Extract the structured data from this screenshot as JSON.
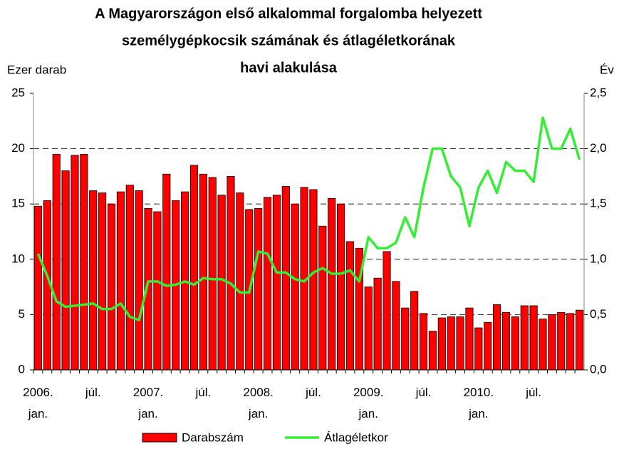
{
  "chart_data": {
    "type": "bar_line",
    "title": [
      "A Magyarországon első alkalommal forgalomba helyezett",
      "személygépkocsik számának és átlagéletkorának",
      "havi alakulása"
    ],
    "ylabel": "Ezer darab",
    "y2label": "Év",
    "categories": [
      "2006. jan.",
      null,
      null,
      null,
      null,
      null,
      "júl.",
      null,
      null,
      null,
      null,
      null,
      "2007. jan.",
      null,
      null,
      null,
      null,
      null,
      "júl.",
      null,
      null,
      null,
      null,
      null,
      "2008. jan.",
      null,
      null,
      null,
      null,
      null,
      "júl.",
      null,
      null,
      null,
      null,
      null,
      "2009. jan.",
      null,
      null,
      null,
      null,
      null,
      "júl.",
      null,
      null,
      null,
      null,
      null,
      "2010. jan.",
      null,
      null,
      null,
      null,
      null,
      "júl.",
      null,
      null,
      null,
      null,
      null
    ],
    "series": [
      {
        "name": "Darabszám",
        "color": "#ff0000",
        "axis": "y",
        "kind": "bar",
        "values": [
          14.8,
          15.3,
          19.5,
          18.0,
          19.4,
          19.5,
          16.2,
          16.0,
          15.0,
          16.1,
          16.7,
          16.2,
          14.6,
          14.3,
          17.7,
          15.3,
          16.1,
          18.5,
          17.7,
          17.4,
          15.8,
          17.5,
          16.0,
          14.5,
          14.6,
          15.6,
          15.8,
          16.6,
          15.0,
          16.5,
          16.3,
          13.0,
          15.5,
          15.0,
          11.6,
          11.0,
          7.5,
          8.3,
          10.7,
          8.0,
          5.6,
          7.1,
          5.1,
          3.5,
          4.7,
          4.8,
          4.8,
          5.6,
          3.8,
          4.3,
          5.9,
          5.2,
          4.8,
          5.8,
          5.8,
          4.6,
          5.0,
          5.2,
          5.1,
          5.4
        ]
      },
      {
        "name": "Átlagéletkor",
        "color": "#33ee33",
        "axis": "y2",
        "kind": "line",
        "values": [
          1.05,
          0.85,
          0.62,
          0.57,
          0.58,
          0.59,
          0.6,
          0.55,
          0.55,
          0.6,
          0.48,
          0.45,
          0.8,
          0.8,
          0.76,
          0.77,
          0.8,
          0.77,
          0.83,
          0.82,
          0.82,
          0.78,
          0.7,
          0.7,
          1.07,
          1.05,
          0.88,
          0.88,
          0.82,
          0.8,
          0.88,
          0.92,
          0.87,
          0.87,
          0.9,
          0.8,
          1.2,
          1.1,
          1.1,
          1.15,
          1.38,
          1.2,
          1.65,
          2.0,
          2.0,
          1.75,
          1.65,
          1.3,
          1.65,
          1.8,
          1.6,
          1.88,
          1.8,
          1.8,
          1.7,
          2.28,
          2.0,
          2.0,
          2.18,
          1.9
        ]
      }
    ],
    "ylim": [
      0,
      25
    ],
    "yticks": [
      0,
      5,
      10,
      15,
      20,
      25
    ],
    "y2lim": [
      0,
      2.5
    ],
    "y2ticks": [
      {
        "value": 0,
        "label": "0,0"
      },
      {
        "value": 0.5,
        "label": "0,5"
      },
      {
        "value": 1,
        "label": "1,0"
      },
      {
        "value": 1.5,
        "label": "1,5"
      },
      {
        "value": 2,
        "label": "2,0"
      },
      {
        "value": 2.5,
        "label": "2,5"
      }
    ],
    "grid": true,
    "legend": "bottom"
  }
}
